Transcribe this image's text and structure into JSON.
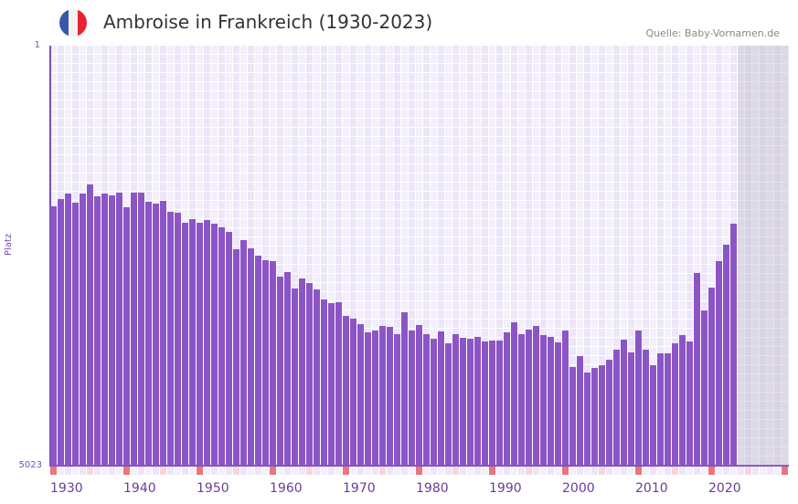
{
  "header": {
    "title": "Ambroise in Frankreich (1930-2023)",
    "source": "Quelle: Baby-Vornamen.de",
    "flag_colors": [
      "#3a56a8",
      "#f2f2f2",
      "#e5242f"
    ]
  },
  "colors": {
    "bar": "#8b55c6",
    "decade_mark": "#e8767c",
    "half_decade_mark": "#f6d6de"
  },
  "chart_data": {
    "type": "bar",
    "title": "Ambroise in Frankreich (1930-2023)",
    "ylabel": "Platz",
    "ylim": [
      5023,
      1
    ],
    "y_ticks": [
      "1",
      "5023"
    ],
    "x_range": [
      1930,
      2030
    ],
    "x_ticks": [
      "1930",
      "1940",
      "1950",
      "1960",
      "1970",
      "1980",
      "1990",
      "2000",
      "2010",
      "2020"
    ],
    "future_start": 2024,
    "categories": [
      1930,
      1931,
      1932,
      1933,
      1934,
      1935,
      1936,
      1937,
      1938,
      1939,
      1940,
      1941,
      1942,
      1943,
      1944,
      1945,
      1946,
      1947,
      1948,
      1949,
      1950,
      1951,
      1952,
      1953,
      1954,
      1955,
      1956,
      1957,
      1958,
      1959,
      1960,
      1961,
      1962,
      1963,
      1964,
      1965,
      1966,
      1967,
      1968,
      1969,
      1970,
      1971,
      1972,
      1973,
      1974,
      1975,
      1976,
      1977,
      1978,
      1979,
      1980,
      1981,
      1982,
      1983,
      1984,
      1985,
      1986,
      1987,
      1988,
      1989,
      1990,
      1991,
      1992,
      1993,
      1994,
      1995,
      1996,
      1997,
      1998,
      1999,
      2000,
      2001,
      2002,
      2003,
      2004,
      2005,
      2006,
      2007,
      2008,
      2009,
      2010,
      2011,
      2012,
      2013,
      2014,
      2015,
      2016,
      2017,
      2018,
      2019,
      2020,
      2021,
      2022,
      2023
    ],
    "values": [
      1922,
      1835,
      1770,
      1879,
      1770,
      1660,
      1802,
      1770,
      1791,
      1759,
      1933,
      1759,
      1759,
      1868,
      1890,
      1857,
      1988,
      1999,
      2119,
      2075,
      2119,
      2086,
      2130,
      2173,
      2228,
      2435,
      2326,
      2425,
      2512,
      2566,
      2577,
      2763,
      2708,
      2905,
      2785,
      2839,
      2916,
      3036,
      3080,
      3069,
      3232,
      3265,
      3331,
      3429,
      3407,
      3353,
      3364,
      3451,
      3189,
      3407,
      3342,
      3451,
      3505,
      3418,
      3560,
      3451,
      3495,
      3505,
      3484,
      3538,
      3527,
      3527,
      3429,
      3309,
      3451,
      3396,
      3353,
      3462,
      3484,
      3549,
      3407,
      3844,
      3713,
      3909,
      3855,
      3822,
      3756,
      3636,
      3516,
      3669,
      3407,
      3636,
      3822,
      3680,
      3680,
      3560,
      3462,
      3538,
      2719,
      3167,
      2894,
      2577,
      2381,
      2130
    ]
  }
}
